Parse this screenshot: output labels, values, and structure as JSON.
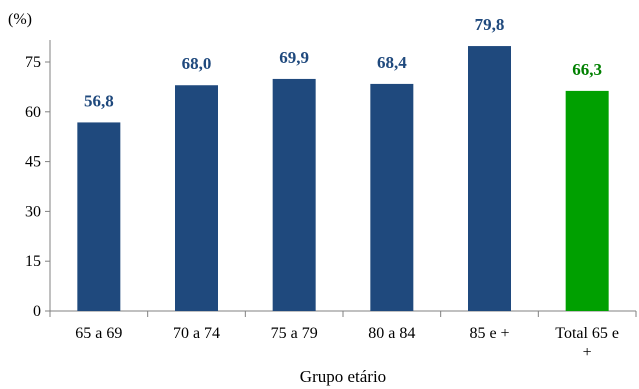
{
  "chart_data": {
    "type": "bar",
    "unit_label": "(%)",
    "xlabel": "Grupo etário",
    "ylabel": "",
    "ylim": [
      0,
      75
    ],
    "yticks": [
      "0",
      "15",
      "30",
      "45",
      "60",
      "75"
    ],
    "categories": [
      [
        "65 a 69"
      ],
      [
        "70 a 74"
      ],
      [
        "75 a 79"
      ],
      [
        "80 a 84"
      ],
      [
        "85 e +"
      ],
      [
        "Total 65 e",
        "+"
      ]
    ],
    "values": [
      56.8,
      68.0,
      69.9,
      68.4,
      79.8,
      66.3
    ],
    "value_labels": [
      "56,8",
      "68,0",
      "69,9",
      "68,4",
      "79,8",
      "66,3"
    ],
    "colors": [
      "#1f497d",
      "#1f497d",
      "#1f497d",
      "#1f497d",
      "#1f497d",
      "#00a000"
    ],
    "label_colors": [
      "#1f497d",
      "#1f497d",
      "#1f497d",
      "#1f497d",
      "#1f497d",
      "#008000"
    ],
    "grid": false,
    "legend": "none"
  }
}
